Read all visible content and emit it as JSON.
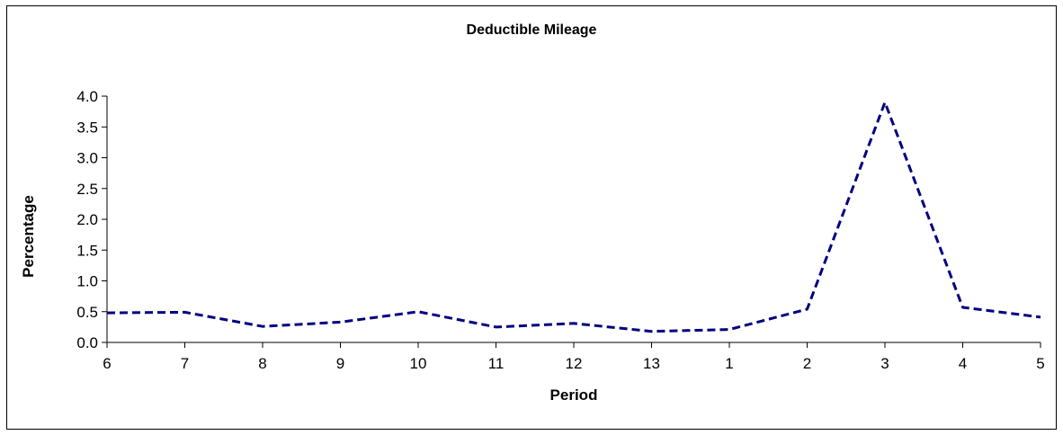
{
  "chart_data": {
    "type": "line",
    "title": "Deductible Mileage",
    "xlabel": "Period",
    "ylabel": "Percentage",
    "categories": [
      "6",
      "7",
      "8",
      "9",
      "10",
      "11",
      "12",
      "13",
      "1",
      "2",
      "3",
      "4",
      "5"
    ],
    "series": [
      {
        "values": [
          0.48,
          0.49,
          0.26,
          0.33,
          0.5,
          0.25,
          0.31,
          0.18,
          0.21,
          0.54,
          3.9,
          0.57,
          0.41
        ],
        "color": "#000080",
        "style": "dashed"
      }
    ],
    "ylim": [
      0,
      4
    ],
    "yticks": [
      "0.0",
      "0.5",
      "1.0",
      "1.5",
      "2.0",
      "2.5",
      "3.0",
      "3.5",
      "4.0"
    ],
    "grid": false,
    "legend": "none"
  }
}
